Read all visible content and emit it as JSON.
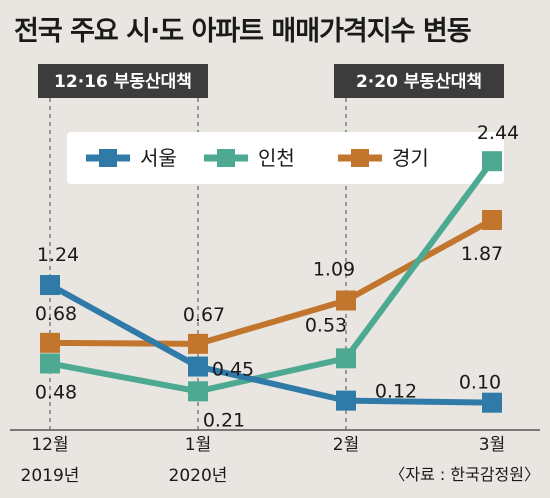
{
  "chart_data": {
    "type": "line",
    "title": "전국 주요 시·도 아파트 매매가격지수 변동",
    "categories": [
      {
        "month": "12월",
        "year": "2019년"
      },
      {
        "month": "1월",
        "year": "2020년"
      },
      {
        "month": "2월",
        "year": ""
      },
      {
        "month": "3월",
        "year": ""
      }
    ],
    "series": [
      {
        "name": "서울",
        "color": "#2f7aa6",
        "values": [
          1.24,
          0.45,
          0.12,
          0.1
        ],
        "labels": [
          "1.24",
          "0.45",
          "0.12",
          "0.10"
        ]
      },
      {
        "name": "인천",
        "color": "#4ea992",
        "values": [
          0.48,
          0.21,
          0.53,
          2.44
        ],
        "labels": [
          "0.48",
          "0.21",
          "0.53",
          "2.44"
        ]
      },
      {
        "name": "경기",
        "color": "#c2762d",
        "values": [
          0.68,
          0.67,
          1.09,
          1.87
        ],
        "labels": [
          "0.68",
          "0.67",
          "1.09",
          "1.87"
        ]
      }
    ],
    "events": [
      {
        "label": "12·16 부동산대책",
        "at_category": 0
      },
      {
        "label": "2·20 부동산대책",
        "at_category": 2
      }
    ],
    "source": "〈자료 : 한국감정원〉",
    "legend_position": "top-center",
    "grid": false
  }
}
